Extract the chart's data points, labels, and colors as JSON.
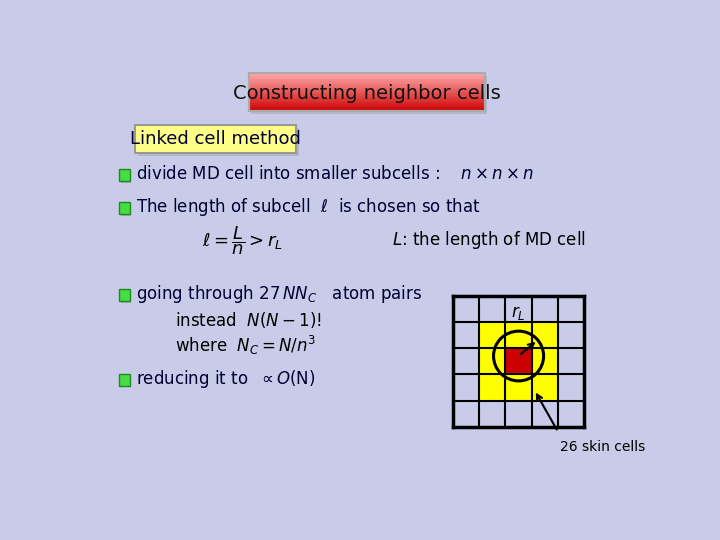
{
  "background_color": "#c8cce8",
  "title_text": "Constructing neighbor cells",
  "linked_cell_text": "Linked cell method",
  "linked_cell_box_color": "#ffff88",
  "bullet_color": "#44dd44",
  "text_color": "#000033",
  "skin_label": "26 skin cells"
}
